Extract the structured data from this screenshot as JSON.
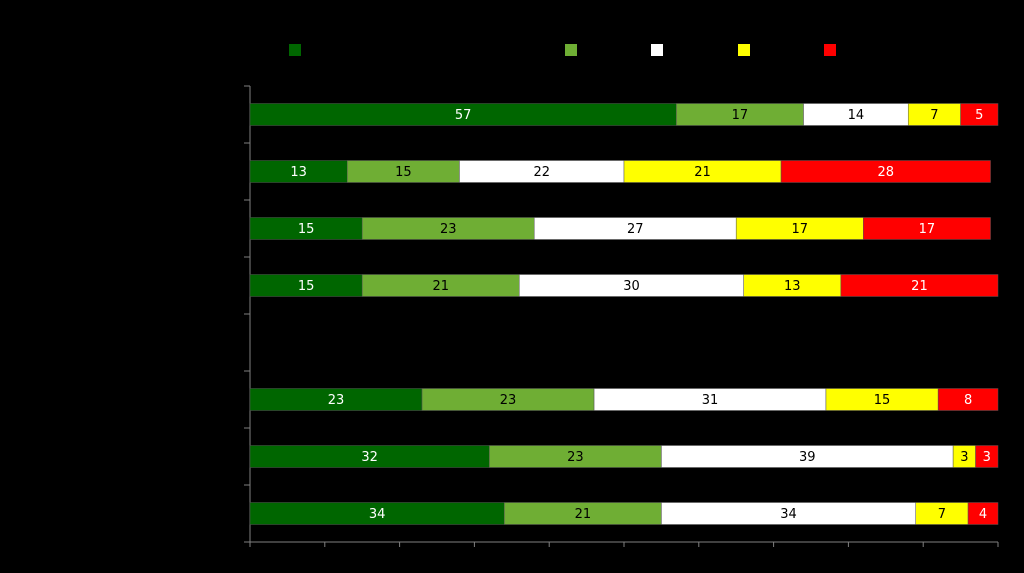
{
  "chart_data": {
    "type": "bar",
    "orientation": "horizontal",
    "stacked": true,
    "percent": true,
    "xlim": [
      0,
      100
    ],
    "x_tick_count": 11,
    "legend_placement": "top",
    "series_colors": [
      "#006600",
      "#6fae34",
      "#ffffff",
      "#ffff00",
      "#ff0000"
    ],
    "label_colors": [
      "#ffffff",
      "#000000",
      "#000000",
      "#000000",
      "#ffffff"
    ],
    "category_slots": 8,
    "rows": [
      {
        "slot": 0,
        "values": [
          57,
          17,
          14,
          7,
          5
        ]
      },
      {
        "slot": 1,
        "values": [
          13,
          15,
          22,
          21,
          28
        ]
      },
      {
        "slot": 2,
        "values": [
          15,
          23,
          27,
          17,
          17
        ]
      },
      {
        "slot": 3,
        "values": [
          15,
          21,
          30,
          13,
          21
        ]
      },
      {
        "slot": 5,
        "values": [
          23,
          23,
          31,
          15,
          8
        ]
      },
      {
        "slot": 6,
        "values": [
          32,
          23,
          39,
          3,
          3
        ]
      },
      {
        "slot": 7,
        "values": [
          34,
          21,
          34,
          7,
          4
        ]
      }
    ]
  }
}
